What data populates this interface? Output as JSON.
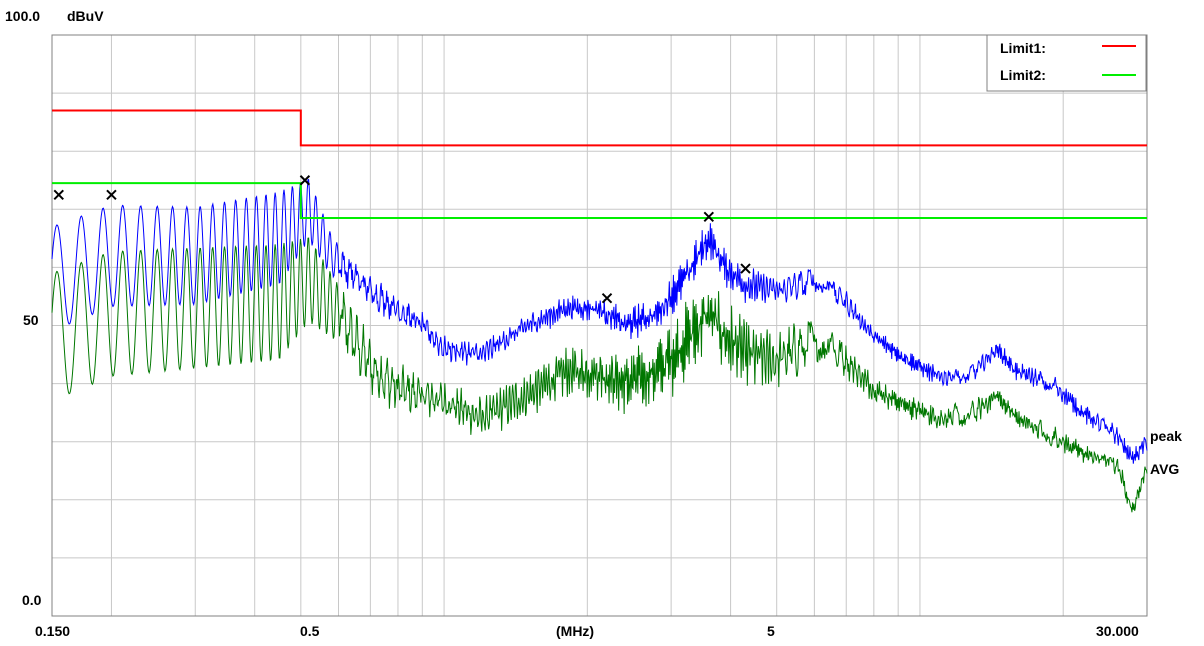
{
  "chart_data": {
    "type": "line",
    "title": "",
    "xlabel": "(MHz)",
    "ylabel": "dBuV",
    "x_scale": "log",
    "xlim": [
      0.15,
      30.0
    ],
    "ylim": [
      0.0,
      100.0
    ],
    "y_ticks": [
      {
        "value": 100.0,
        "label": "100.0"
      },
      {
        "value": 50,
        "label": "50"
      },
      {
        "value": 0.0,
        "label": "0.0"
      }
    ],
    "x_ticks": [
      {
        "value": 0.15,
        "label": "0.150"
      },
      {
        "value": 0.5,
        "label": "0.5"
      },
      {
        "value": 5,
        "label": "5"
      },
      {
        "value": 30.0,
        "label": "30.000"
      }
    ],
    "grid": true,
    "legend_position": "top-right",
    "limits": [
      {
        "name": "Limit1:",
        "color": "#ff0000",
        "points": [
          [
            0.15,
            87.0
          ],
          [
            0.5,
            87.0
          ],
          [
            0.5,
            81.0
          ],
          [
            30.0,
            81.0
          ]
        ]
      },
      {
        "name": "Limit2:",
        "color": "#00ee00",
        "points": [
          [
            0.15,
            74.5
          ],
          [
            0.5,
            74.5
          ],
          [
            0.5,
            68.5
          ],
          [
            30.0,
            68.5
          ]
        ]
      }
    ],
    "series": [
      {
        "name": "peak",
        "color": "#0000ff",
        "envelope": [
          [
            0.15,
            58
          ],
          [
            0.2,
            62
          ],
          [
            0.3,
            62
          ],
          [
            0.45,
            65
          ],
          [
            0.52,
            70
          ],
          [
            0.58,
            62
          ],
          [
            0.7,
            56
          ],
          [
            0.9,
            50
          ],
          [
            1.0,
            46
          ],
          [
            1.2,
            45
          ],
          [
            1.5,
            50
          ],
          [
            1.8,
            53
          ],
          [
            2.1,
            53
          ],
          [
            2.4,
            50
          ],
          [
            2.8,
            52
          ],
          [
            3.2,
            58
          ],
          [
            3.6,
            65
          ],
          [
            3.9,
            60
          ],
          [
            4.3,
            57
          ],
          [
            5.0,
            56
          ],
          [
            5.6,
            57
          ],
          [
            6.2,
            58
          ],
          [
            7.0,
            54
          ],
          [
            8.0,
            48
          ],
          [
            9.5,
            44
          ],
          [
            11.0,
            41
          ],
          [
            13.0,
            42
          ],
          [
            14.5,
            46
          ],
          [
            16.0,
            42
          ],
          [
            19.0,
            40
          ],
          [
            22.0,
            35
          ],
          [
            26.0,
            31
          ],
          [
            28.0,
            27
          ],
          [
            30.0,
            30
          ]
        ],
        "osc_amplitude": [
          [
            0.15,
            9
          ],
          [
            0.45,
            8
          ],
          [
            0.5,
            6
          ],
          [
            0.6,
            3
          ],
          [
            1.0,
            2
          ],
          [
            2.0,
            2
          ],
          [
            3.0,
            3
          ],
          [
            4.0,
            3
          ],
          [
            8.0,
            1.5
          ],
          [
            30.0,
            1.5
          ]
        ]
      },
      {
        "name": "AVG",
        "color": "#007700",
        "envelope": [
          [
            0.15,
            48
          ],
          [
            0.2,
            52
          ],
          [
            0.3,
            53
          ],
          [
            0.45,
            54
          ],
          [
            0.52,
            58
          ],
          [
            0.6,
            52
          ],
          [
            0.7,
            43
          ],
          [
            0.8,
            39
          ],
          [
            1.0,
            37
          ],
          [
            1.2,
            34
          ],
          [
            1.5,
            38
          ],
          [
            1.8,
            42
          ],
          [
            2.1,
            42
          ],
          [
            2.4,
            40
          ],
          [
            2.8,
            42
          ],
          [
            3.2,
            47
          ],
          [
            3.6,
            52
          ],
          [
            3.9,
            48
          ],
          [
            4.3,
            45
          ],
          [
            5.0,
            44
          ],
          [
            5.6,
            46
          ],
          [
            6.2,
            48
          ],
          [
            7.0,
            44
          ],
          [
            8.0,
            39
          ],
          [
            9.5,
            36
          ],
          [
            11.0,
            34
          ],
          [
            13.0,
            35
          ],
          [
            14.5,
            38
          ],
          [
            16.0,
            34
          ],
          [
            19.0,
            31
          ],
          [
            22.0,
            28
          ],
          [
            26.0,
            26
          ],
          [
            28.0,
            18
          ],
          [
            30.0,
            26
          ]
        ],
        "osc_amplitude": [
          [
            0.15,
            11
          ],
          [
            0.45,
            10
          ],
          [
            0.5,
            8
          ],
          [
            0.6,
            5
          ],
          [
            1.0,
            3
          ],
          [
            2.0,
            4
          ],
          [
            3.0,
            6
          ],
          [
            4.0,
            6
          ],
          [
            8.0,
            2
          ],
          [
            30.0,
            1.5
          ]
        ]
      }
    ],
    "markers": [
      {
        "x": 0.155,
        "y": 72.5
      },
      {
        "x": 0.2,
        "y": 72.5
      },
      {
        "x": 0.51,
        "y": 75.0
      },
      {
        "x": 2.2,
        "y": 54.7
      },
      {
        "x": 3.6,
        "y": 68.7
      },
      {
        "x": 4.3,
        "y": 59.8
      }
    ],
    "series_labels": [
      {
        "text": "peak",
        "y": 28.5,
        "color": "#000000"
      },
      {
        "text": "AVG",
        "y": 22.5,
        "color": "#007700"
      }
    ]
  }
}
